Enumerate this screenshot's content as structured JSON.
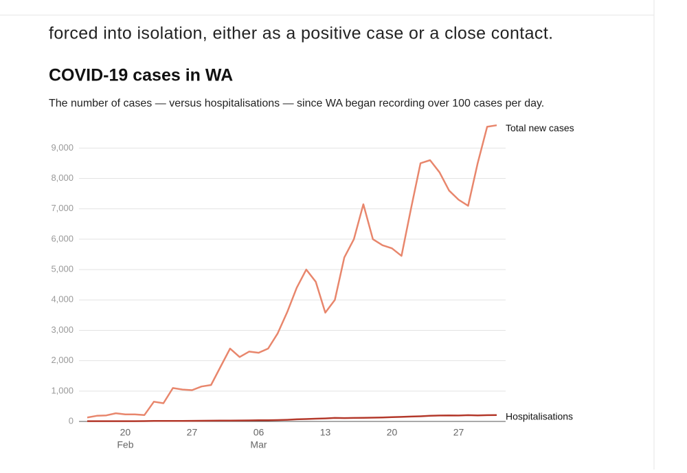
{
  "article_text": "forced into isolation, either as a positive case or a close contact.",
  "chart_data": {
    "type": "line",
    "title": "COVID-19 cases in WA",
    "subtitle": "The number of cases — versus hospitalisations — since WA began recording over 100 cases per day.",
    "categories": [
      null,
      null,
      null,
      null,
      "20",
      null,
      null,
      null,
      null,
      null,
      null,
      "27",
      null,
      null,
      null,
      null,
      null,
      null,
      "06",
      null,
      null,
      null,
      null,
      null,
      null,
      "13",
      null,
      null,
      null,
      null,
      null,
      null,
      "20",
      null,
      null,
      null,
      null,
      null,
      null,
      "27",
      null,
      null,
      null,
      null
    ],
    "category_months": [
      null,
      null,
      null,
      null,
      "Feb",
      null,
      null,
      null,
      null,
      null,
      null,
      null,
      null,
      null,
      null,
      null,
      null,
      null,
      "Mar",
      null,
      null,
      null,
      null,
      null,
      null,
      null,
      null,
      null,
      null,
      null,
      null,
      null,
      null,
      null,
      null,
      null,
      null,
      null,
      null,
      null,
      null,
      null,
      null,
      null
    ],
    "series": [
      {
        "name": "Total new cases",
        "color": "#e8866c",
        "values": [
          130,
          185,
          200,
          270,
          230,
          230,
          210,
          650,
          600,
          1100,
          1050,
          1030,
          1150,
          1200,
          1800,
          2400,
          2120,
          2300,
          2260,
          2400,
          2900,
          3600,
          4400,
          5000,
          4600,
          3580,
          4000,
          5400,
          6000,
          7150,
          6000,
          5800,
          5700,
          5450,
          7000,
          8500,
          8600,
          8200,
          7600,
          7300,
          7100,
          8500,
          9700,
          9750
        ]
      },
      {
        "name": "Hospitalisations",
        "color": "#b3382a",
        "values": [
          10,
          10,
          10,
          10,
          10,
          10,
          12,
          15,
          15,
          18,
          18,
          20,
          22,
          25,
          28,
          30,
          32,
          35,
          38,
          40,
          45,
          55,
          70,
          80,
          90,
          100,
          115,
          110,
          115,
          120,
          125,
          130,
          140,
          150,
          160,
          170,
          185,
          195,
          200,
          195,
          205,
          200,
          205,
          210
        ]
      }
    ],
    "ylim": [
      0,
      9800
    ],
    "yticks": [
      0,
      {
        "value": 1000,
        "label": "1,000"
      },
      {
        "value": 2000,
        "label": "2,000"
      },
      {
        "value": 3000,
        "label": "3,000"
      },
      {
        "value": 4000,
        "label": "4,000"
      },
      {
        "value": 5000,
        "label": "5,000"
      },
      {
        "value": 6000,
        "label": "6,000"
      },
      {
        "value": 7000,
        "label": "7,000"
      },
      {
        "value": 8000,
        "label": "8,000"
      },
      {
        "value": 9000,
        "label": "9,000"
      }
    ],
    "grid": true
  }
}
